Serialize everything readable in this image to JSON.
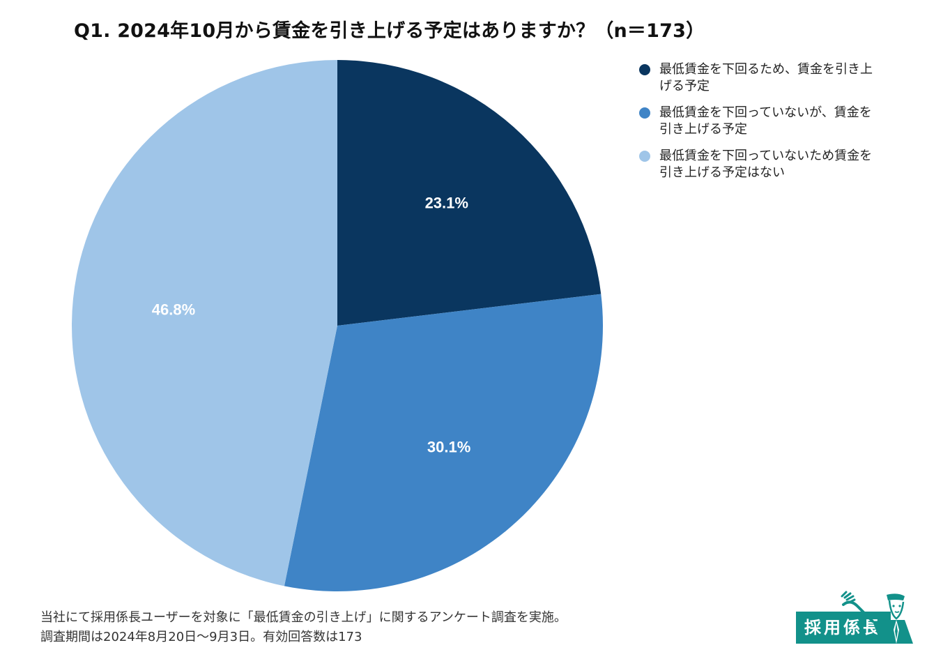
{
  "title": "Q1. 2024年10月から賃金を引き上げる予定はありますか？（n＝173）",
  "chart_data": {
    "type": "pie",
    "title": "Q1. 2024年10月から賃金を引き上げる予定はありますか？（n＝173）",
    "slices": [
      {
        "label": "最低賃金を下回るため、賃金を引き上げる予定",
        "value": 23.1,
        "display": "23.1%",
        "color": "#0a365f"
      },
      {
        "label": "最低賃金を下回っていないが、賃金を引き上げる予定",
        "value": 30.1,
        "display": "30.1%",
        "color": "#3f84c6"
      },
      {
        "label": "最低賃金を下回っていないため賃金を引き上げる予定はない",
        "value": 46.8,
        "display": "46.8%",
        "color": "#9fc5e8"
      }
    ],
    "start": "12 o'clock",
    "direction": "clockwise",
    "legend_position": "right"
  },
  "footnote": {
    "line1": "当社にて採用係長ユーザーを対象に「最低賃金の引き上げ」に関するアンケート調査を実施。",
    "line2": "調査期間は2024年8月20日〜9月3日。有効回答数は173"
  },
  "logo": {
    "text": "採用係長",
    "color": "#12918a"
  }
}
